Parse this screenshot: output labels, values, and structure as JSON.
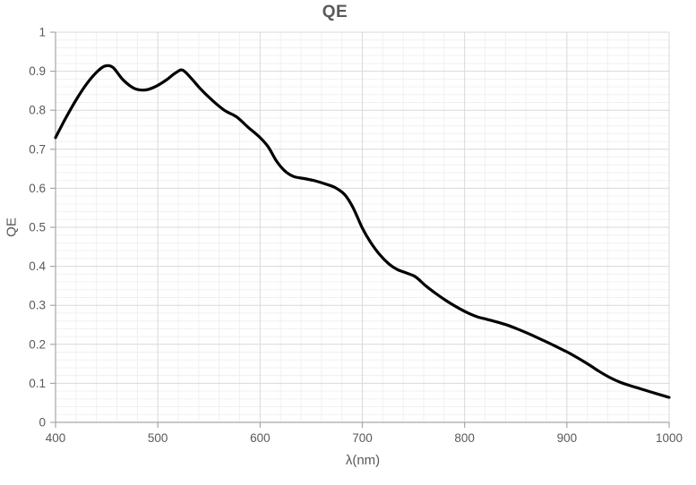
{
  "chart_data": {
    "type": "line",
    "title": "QE",
    "xlabel": "λ(nm)",
    "ylabel": "QE",
    "xlim": [
      400,
      1000
    ],
    "ylim": [
      0,
      1
    ],
    "x_tick_values": [
      400,
      500,
      600,
      700,
      800,
      900,
      1000
    ],
    "x_tick_labels": [
      "400",
      "500",
      "600",
      "700",
      "800",
      "900",
      "1000"
    ],
    "y_tick_values": [
      0,
      0.1,
      0.2,
      0.3,
      0.4,
      0.5,
      0.6,
      0.7,
      0.8,
      0.9,
      1
    ],
    "y_tick_labels": [
      "0",
      "0.1",
      "0.2",
      "0.3",
      "0.4",
      "0.5",
      "0.6",
      "0.7",
      "0.8",
      "0.9",
      "1"
    ],
    "x_minor_step": 20,
    "y_minor_step": 0.02,
    "grid": "major+minor on",
    "legend": "none",
    "series": [
      {
        "name": "QE",
        "color": "#000000",
        "points": [
          [
            400,
            0.73
          ],
          [
            410,
            0.78
          ],
          [
            420,
            0.826
          ],
          [
            430,
            0.866
          ],
          [
            440,
            0.897
          ],
          [
            448,
            0.913
          ],
          [
            456,
            0.91
          ],
          [
            466,
            0.878
          ],
          [
            477,
            0.856
          ],
          [
            488,
            0.852
          ],
          [
            498,
            0.861
          ],
          [
            508,
            0.877
          ],
          [
            517,
            0.895
          ],
          [
            524,
            0.903
          ],
          [
            532,
            0.884
          ],
          [
            542,
            0.854
          ],
          [
            553,
            0.826
          ],
          [
            565,
            0.8
          ],
          [
            577,
            0.783
          ],
          [
            588,
            0.757
          ],
          [
            600,
            0.73
          ],
          [
            608,
            0.706
          ],
          [
            616,
            0.67
          ],
          [
            624,
            0.645
          ],
          [
            633,
            0.63
          ],
          [
            643,
            0.625
          ],
          [
            654,
            0.619
          ],
          [
            665,
            0.61
          ],
          [
            674,
            0.601
          ],
          [
            683,
            0.583
          ],
          [
            691,
            0.55
          ],
          [
            700,
            0.498
          ],
          [
            708,
            0.462
          ],
          [
            717,
            0.43
          ],
          [
            726,
            0.406
          ],
          [
            734,
            0.392
          ],
          [
            743,
            0.383
          ],
          [
            752,
            0.373
          ],
          [
            762,
            0.35
          ],
          [
            772,
            0.33
          ],
          [
            782,
            0.312
          ],
          [
            792,
            0.296
          ],
          [
            802,
            0.282
          ],
          [
            812,
            0.271
          ],
          [
            822,
            0.264
          ],
          [
            832,
            0.257
          ],
          [
            842,
            0.249
          ],
          [
            852,
            0.239
          ],
          [
            862,
            0.228
          ],
          [
            872,
            0.216
          ],
          [
            882,
            0.204
          ],
          [
            892,
            0.191
          ],
          [
            902,
            0.178
          ],
          [
            912,
            0.163
          ],
          [
            922,
            0.147
          ],
          [
            932,
            0.13
          ],
          [
            942,
            0.115
          ],
          [
            952,
            0.103
          ],
          [
            962,
            0.094
          ],
          [
            972,
            0.086
          ],
          [
            982,
            0.078
          ],
          [
            991,
            0.071
          ],
          [
            1000,
            0.064
          ]
        ]
      }
    ]
  },
  "colors": {
    "background": "#FFFFFF",
    "title_text": "#595959",
    "tick_label_text": "#595959",
    "axis_line": "#A6A6A6",
    "grid_major": "#D9D9D9",
    "grid_minor": "#F0F0F0",
    "curve": "#000000"
  }
}
